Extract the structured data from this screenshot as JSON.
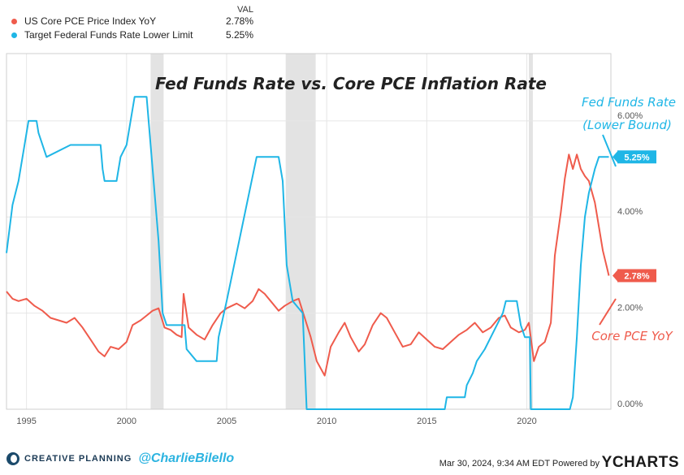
{
  "legend": {
    "header": "VAL",
    "items": [
      {
        "label": "US Core PCE Price Index YoY",
        "value": "2.78%",
        "color": "#ef5b4c"
      },
      {
        "label": "Target Federal Funds Rate Lower Limit",
        "value": "5.25%",
        "color": "#1fb6e6"
      }
    ]
  },
  "footer": {
    "brand": "CREATIVE PLANNING",
    "handle": "@CharlieBilello",
    "timestamp": "Mar 30, 2024, 9:34 AM EDT Powered by",
    "provider": "YCHARTS"
  },
  "chart_data": {
    "type": "line",
    "title": "Fed Funds Rate vs. Core PCE Inflation Rate",
    "xlim": [
      1994.0,
      2024.2
    ],
    "ylim": [
      0,
      7.4
    ],
    "x_ticks": [
      1995,
      2000,
      2005,
      2010,
      2015,
      2020
    ],
    "x_tick_labels": [
      "1995",
      "2000",
      "2005",
      "2010",
      "2015",
      "2020"
    ],
    "y_ticks": [
      0,
      2,
      4,
      6
    ],
    "y_tick_labels": [
      "0.00%",
      "2.00%",
      "4.00%",
      "6.00%"
    ],
    "grid": true,
    "recessions": [
      [
        2001.2,
        2001.85
      ],
      [
        2007.95,
        2009.45
      ],
      [
        2020.1,
        2020.3
      ]
    ],
    "annotations": [
      {
        "text": "Fed Funds Rate",
        "color": "#1fb6e6"
      },
      {
        "text": "(Lower Bound)",
        "color": "#1fb6e6"
      },
      {
        "text": "Core PCE YoY",
        "color": "#ef5b4c"
      }
    ],
    "series": [
      {
        "name": "US Core PCE Price Index YoY",
        "color": "#ef5b4c",
        "last_label": "2.78%",
        "points": [
          [
            1994.0,
            2.45
          ],
          [
            1994.3,
            2.3
          ],
          [
            1994.6,
            2.25
          ],
          [
            1995.0,
            2.3
          ],
          [
            1995.4,
            2.15
          ],
          [
            1995.8,
            2.05
          ],
          [
            1996.2,
            1.9
          ],
          [
            1996.6,
            1.85
          ],
          [
            1997.0,
            1.8
          ],
          [
            1997.4,
            1.9
          ],
          [
            1997.8,
            1.7
          ],
          [
            1998.2,
            1.45
          ],
          [
            1998.6,
            1.2
          ],
          [
            1998.9,
            1.1
          ],
          [
            1999.2,
            1.3
          ],
          [
            1999.6,
            1.25
          ],
          [
            2000.0,
            1.4
          ],
          [
            2000.3,
            1.75
          ],
          [
            2000.7,
            1.85
          ],
          [
            2001.0,
            1.95
          ],
          [
            2001.3,
            2.05
          ],
          [
            2001.6,
            2.1
          ],
          [
            2001.9,
            1.7
          ],
          [
            2002.2,
            1.65
          ],
          [
            2002.5,
            1.55
          ],
          [
            2002.75,
            1.5
          ],
          [
            2002.85,
            2.4
          ],
          [
            2003.1,
            1.7
          ],
          [
            2003.5,
            1.55
          ],
          [
            2003.9,
            1.45
          ],
          [
            2004.3,
            1.75
          ],
          [
            2004.7,
            2.0
          ],
          [
            2005.0,
            2.1
          ],
          [
            2005.5,
            2.2
          ],
          [
            2005.9,
            2.1
          ],
          [
            2006.3,
            2.25
          ],
          [
            2006.6,
            2.5
          ],
          [
            2006.9,
            2.4
          ],
          [
            2007.2,
            2.25
          ],
          [
            2007.6,
            2.05
          ],
          [
            2007.9,
            2.15
          ],
          [
            2008.3,
            2.25
          ],
          [
            2008.6,
            2.3
          ],
          [
            2008.9,
            1.9
          ],
          [
            2009.2,
            1.5
          ],
          [
            2009.5,
            1.0
          ],
          [
            2009.9,
            0.7
          ],
          [
            2010.2,
            1.3
          ],
          [
            2010.6,
            1.6
          ],
          [
            2010.9,
            1.8
          ],
          [
            2011.2,
            1.5
          ],
          [
            2011.6,
            1.2
          ],
          [
            2011.9,
            1.35
          ],
          [
            2012.3,
            1.75
          ],
          [
            2012.7,
            2.0
          ],
          [
            2013.0,
            1.9
          ],
          [
            2013.4,
            1.6
          ],
          [
            2013.8,
            1.3
          ],
          [
            2014.2,
            1.35
          ],
          [
            2014.6,
            1.6
          ],
          [
            2015.0,
            1.45
          ],
          [
            2015.4,
            1.3
          ],
          [
            2015.8,
            1.25
          ],
          [
            2016.2,
            1.4
          ],
          [
            2016.6,
            1.55
          ],
          [
            2017.0,
            1.65
          ],
          [
            2017.4,
            1.8
          ],
          [
            2017.8,
            1.6
          ],
          [
            2018.2,
            1.7
          ],
          [
            2018.6,
            1.9
          ],
          [
            2018.9,
            1.95
          ],
          [
            2019.2,
            1.7
          ],
          [
            2019.6,
            1.6
          ],
          [
            2019.9,
            1.65
          ],
          [
            2020.1,
            1.8
          ],
          [
            2020.35,
            1.0
          ],
          [
            2020.6,
            1.3
          ],
          [
            2020.9,
            1.4
          ],
          [
            2021.2,
            1.8
          ],
          [
            2021.4,
            3.2
          ],
          [
            2021.7,
            4.1
          ],
          [
            2021.9,
            4.8
          ],
          [
            2022.1,
            5.3
          ],
          [
            2022.3,
            5.0
          ],
          [
            2022.5,
            5.3
          ],
          [
            2022.7,
            5.0
          ],
          [
            2022.9,
            4.85
          ],
          [
            2023.1,
            4.75
          ],
          [
            2023.4,
            4.3
          ],
          [
            2023.6,
            3.8
          ],
          [
            2023.8,
            3.3
          ],
          [
            2024.0,
            2.95
          ],
          [
            2024.1,
            2.78
          ]
        ]
      },
      {
        "name": "Target Federal Funds Rate Lower Limit",
        "color": "#1fb6e6",
        "last_label": "5.25%",
        "points": [
          [
            1994.0,
            3.25
          ],
          [
            1994.3,
            4.25
          ],
          [
            1994.6,
            4.75
          ],
          [
            1994.9,
            5.5
          ],
          [
            1995.1,
            6.0
          ],
          [
            1995.5,
            6.0
          ],
          [
            1995.6,
            5.75
          ],
          [
            1996.0,
            5.25
          ],
          [
            1997.2,
            5.5
          ],
          [
            1998.7,
            5.5
          ],
          [
            1998.8,
            5.0
          ],
          [
            1998.9,
            4.75
          ],
          [
            1999.5,
            4.75
          ],
          [
            1999.7,
            5.25
          ],
          [
            2000.0,
            5.5
          ],
          [
            2000.4,
            6.5
          ],
          [
            2001.0,
            6.5
          ],
          [
            2001.2,
            5.5
          ],
          [
            2001.4,
            4.5
          ],
          [
            2001.6,
            3.5
          ],
          [
            2001.8,
            2.0
          ],
          [
            2002.0,
            1.75
          ],
          [
            2002.9,
            1.75
          ],
          [
            2003.0,
            1.25
          ],
          [
            2003.5,
            1.0
          ],
          [
            2004.5,
            1.0
          ],
          [
            2004.6,
            1.5
          ],
          [
            2005.0,
            2.25
          ],
          [
            2005.5,
            3.25
          ],
          [
            2006.0,
            4.25
          ],
          [
            2006.5,
            5.25
          ],
          [
            2007.6,
            5.25
          ],
          [
            2007.8,
            4.75
          ],
          [
            2008.0,
            3.0
          ],
          [
            2008.3,
            2.25
          ],
          [
            2008.8,
            2.0
          ],
          [
            2008.9,
            1.0
          ],
          [
            2009.0,
            0.0
          ],
          [
            2015.9,
            0.0
          ],
          [
            2016.0,
            0.25
          ],
          [
            2016.9,
            0.25
          ],
          [
            2017.0,
            0.5
          ],
          [
            2017.3,
            0.75
          ],
          [
            2017.5,
            1.0
          ],
          [
            2017.9,
            1.25
          ],
          [
            2018.2,
            1.5
          ],
          [
            2018.5,
            1.75
          ],
          [
            2018.8,
            2.0
          ],
          [
            2018.95,
            2.25
          ],
          [
            2019.5,
            2.25
          ],
          [
            2019.7,
            1.75
          ],
          [
            2019.9,
            1.5
          ],
          [
            2020.15,
            1.5
          ],
          [
            2020.2,
            0.0
          ],
          [
            2022.15,
            0.0
          ],
          [
            2022.3,
            0.25
          ],
          [
            2022.5,
            1.5
          ],
          [
            2022.7,
            3.0
          ],
          [
            2022.9,
            4.0
          ],
          [
            2023.1,
            4.5
          ],
          [
            2023.4,
            5.0
          ],
          [
            2023.6,
            5.25
          ],
          [
            2024.1,
            5.25
          ]
        ]
      }
    ]
  }
}
